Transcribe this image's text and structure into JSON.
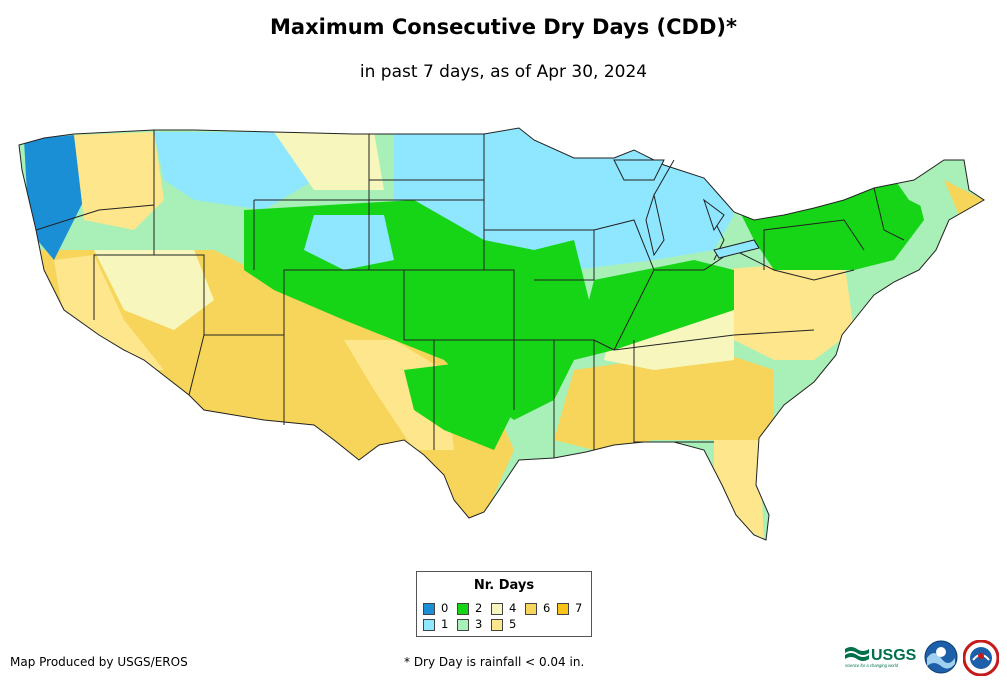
{
  "title": "Maximum Consecutive Dry Days (CDD)*",
  "subtitle": "in past 7 days, as of Apr 30, 2024",
  "legend": {
    "title": "Nr. Days",
    "items": [
      {
        "label": "0",
        "color": "#1a8fd6"
      },
      {
        "label": "1",
        "color": "#8ee6ff"
      },
      {
        "label": "2",
        "color": "#16d416"
      },
      {
        "label": "3",
        "color": "#a8f0b8"
      },
      {
        "label": "4",
        "color": "#f7f7bd"
      },
      {
        "label": "5",
        "color": "#fde68c"
      },
      {
        "label": "6",
        "color": "#f6d55a"
      },
      {
        "label": "7",
        "color": "#f9c21b"
      }
    ]
  },
  "credit": "Map Produced by USGS/EROS",
  "footnote": "* Dry Day is rainfall < 0.04 in.",
  "logos": {
    "usgs": "USGS",
    "usgs_tagline": "science for a changing world"
  },
  "colors": {
    "background": "#ffffff",
    "border": "#222222"
  }
}
